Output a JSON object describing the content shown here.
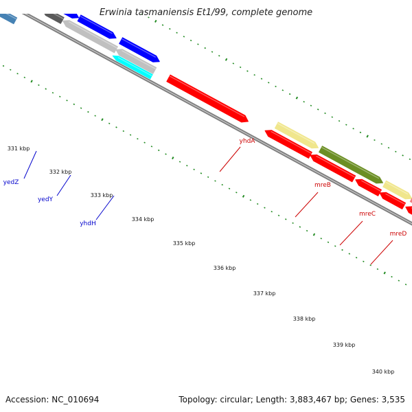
{
  "title": "Erwinia tasmaniensis Et1/99, complete genome",
  "footer": {
    "accession": "Accession: NC_010694",
    "summary": "Topology: circular; Length: 3,883,467 bp; Genes: 3,535"
  },
  "colors": {
    "red": "#ff0000",
    "blue": "#0000ff",
    "steel": "#4682b4",
    "gray": "#5a5a5a",
    "silver": "#c0c0c0",
    "cyan": "#00ffff",
    "khaki": "#f0e68c",
    "olive": "#6b8e23",
    "salmon": "#f08080",
    "backbone": "#808080",
    "tick": "#228b22",
    "label_blue": "#0000cc",
    "label_red": "#cc0000"
  },
  "kbp_labels": [
    "331 kbp",
    "332 kbp",
    "333 kbp",
    "334 kbp",
    "335 kbp",
    "336 kbp",
    "337 kbp",
    "338 kbp",
    "339 kbp",
    "340 kbp"
  ],
  "gene_labels": [
    {
      "text": "yedZ",
      "color": "blue"
    },
    {
      "text": "yedY",
      "color": "blue"
    },
    {
      "text": "yhdH",
      "color": "blue"
    },
    {
      "text": "yhdA",
      "color": "red"
    },
    {
      "text": "mreB",
      "color": "red"
    },
    {
      "text": "mreC",
      "color": "red"
    },
    {
      "text": "mreD",
      "color": "red"
    }
  ],
  "features": [
    {
      "color": "blue",
      "strand": "-"
    },
    {
      "color": "steel",
      "strand": "-"
    },
    {
      "color": "blue",
      "strand": "+"
    },
    {
      "color": "blue",
      "strand": "+"
    },
    {
      "color": "gray",
      "strand": "-"
    },
    {
      "color": "blue",
      "strand": "+"
    },
    {
      "color": "silver",
      "strand": "-"
    },
    {
      "color": "blue",
      "strand": "+"
    },
    {
      "color": "silver",
      "strand": "-"
    },
    {
      "color": "cyan",
      "strand": "-"
    },
    {
      "color": "red",
      "strand": "+"
    },
    {
      "color": "khaki",
      "strand": "+"
    },
    {
      "color": "red",
      "strand": "-"
    },
    {
      "color": "olive",
      "strand": "+"
    },
    {
      "color": "red",
      "strand": "-"
    },
    {
      "color": "khaki",
      "strand": "+"
    },
    {
      "color": "red",
      "strand": "-"
    },
    {
      "color": "salmon",
      "strand": "+"
    },
    {
      "color": "red",
      "strand": "-"
    },
    {
      "color": "red",
      "strand": "-"
    }
  ]
}
